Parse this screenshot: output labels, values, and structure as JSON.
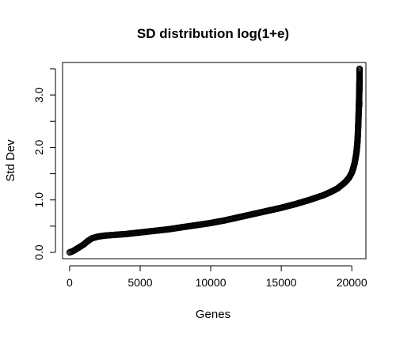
{
  "chart_data": {
    "type": "scatter",
    "title": "SD distribution log(1+e)",
    "xlabel": "Genes",
    "ylabel": "Std Dev",
    "xlim": [
      -500,
      21000
    ],
    "ylim": [
      -0.12,
      3.62
    ],
    "x_ticks": [
      0,
      5000,
      10000,
      15000,
      20000
    ],
    "x_tick_labels": [
      "0",
      "5000",
      "10000",
      "15000",
      "20000"
    ],
    "y_ticks": [
      0.0,
      0.5,
      1.0,
      1.5,
      2.0,
      2.5,
      3.0,
      3.5
    ],
    "y_tick_labels": [
      "0.0",
      "",
      "1.0",
      "",
      "2.0",
      "",
      "3.0",
      ""
    ],
    "grid": false,
    "marker": "open-circle",
    "point_color": "#000000",
    "series": [
      {
        "x": [
          0,
          200,
          400,
          700,
          1000,
          1300,
          1600,
          2000,
          2500,
          3000,
          4000,
          5000,
          6000,
          7000,
          8000,
          9000,
          10000,
          11000,
          12000,
          13000,
          14000,
          15000,
          16000,
          17000,
          18000,
          18500,
          19000,
          19500,
          19800,
          20000,
          20100,
          20200,
          20300,
          20350,
          20400,
          20430,
          20460,
          20480,
          20500,
          20510,
          20515,
          20520,
          20525,
          20530,
          20535,
          20540,
          20545,
          20550
        ],
        "values": [
          0.0,
          0.02,
          0.05,
          0.1,
          0.15,
          0.22,
          0.27,
          0.3,
          0.32,
          0.33,
          0.35,
          0.38,
          0.41,
          0.44,
          0.48,
          0.52,
          0.56,
          0.61,
          0.67,
          0.73,
          0.79,
          0.85,
          0.92,
          1.0,
          1.09,
          1.15,
          1.22,
          1.33,
          1.42,
          1.52,
          1.6,
          1.7,
          1.85,
          1.95,
          2.1,
          2.25,
          2.45,
          2.6,
          2.75,
          2.83,
          2.87,
          2.92,
          3.0,
          3.05,
          3.08,
          3.2,
          3.25,
          3.5
        ]
      }
    ]
  }
}
